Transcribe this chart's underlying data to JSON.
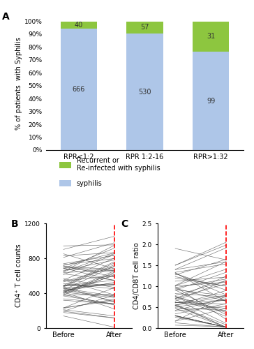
{
  "panel_A": {
    "categories": [
      "RPR<1:2",
      "RPR 1:2-16",
      "RPR>1:32"
    ],
    "blue_values": [
      666,
      530,
      99
    ],
    "green_values": [
      40,
      57,
      31
    ],
    "blue_pct": [
      94.3,
      90.3,
      76.2
    ],
    "green_pct": [
      5.7,
      9.7,
      23.8
    ],
    "blue_color": "#aec6e8",
    "green_color": "#8dc63f",
    "ylabel": "% of patients  with Syphilis",
    "yticks": [
      0,
      10,
      20,
      30,
      40,
      50,
      60,
      70,
      80,
      90,
      100
    ]
  },
  "panel_B": {
    "xlabel_before": "Before",
    "xlabel_after": "After",
    "ylabel": "CD4⁺ T cell counts",
    "ylim": [
      0,
      1200
    ],
    "yticks": [
      0,
      400,
      800,
      1200
    ],
    "line_color": "#404040",
    "red_color": "#ff0000",
    "n_lines": 60,
    "seed": 77
  },
  "panel_C": {
    "xlabel_before": "Before",
    "xlabel_after": "After",
    "ylabel": "CD4/CD8T cell ratio",
    "ylim": [
      0.0,
      2.5
    ],
    "yticks": [
      0.0,
      0.5,
      1.0,
      1.5,
      2.0,
      2.5
    ],
    "red_color": "#ff0000",
    "line_color": "#404040",
    "n_lines": 55,
    "seed": 99
  },
  "green_color": "#8dc63f",
  "blue_color": "#aec6e8",
  "legend_label_green": "Recurrent or\nRe-infected with syphilis",
  "legend_label_blue": "syphilis"
}
